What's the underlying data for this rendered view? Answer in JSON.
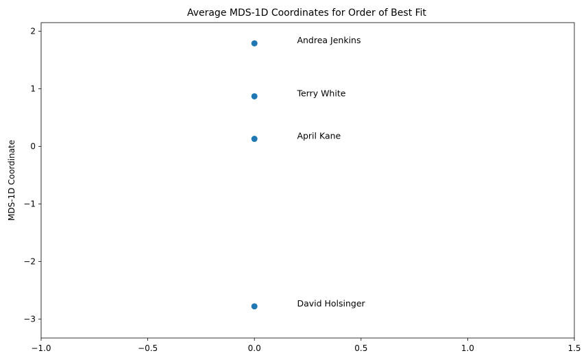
{
  "chart_data": {
    "type": "scatter",
    "title": "Average MDS-1D Coordinates for Order of Best Fit",
    "xlabel": "",
    "ylabel": "MDS-1D Coordinate",
    "xlim": [
      -1.0,
      1.5
    ],
    "ylim": [
      -3.33,
      2.15
    ],
    "xticks": [
      -1.0,
      -0.5,
      0.0,
      0.5,
      1.0,
      1.5
    ],
    "xtick_labels": [
      "−1.0",
      "−0.5",
      "0.0",
      "0.5",
      "1.0",
      "1.5"
    ],
    "yticks": [
      -3,
      -2,
      -1,
      0,
      1,
      2
    ],
    "ytick_labels": [
      "−3",
      "−2",
      "−1",
      "0",
      "1",
      "2"
    ],
    "grid": false,
    "marker_color": "#1f77b4",
    "points": [
      {
        "x": 0.0,
        "y": 1.79
      },
      {
        "x": 0.0,
        "y": 0.87
      },
      {
        "x": 0.0,
        "y": 0.13
      },
      {
        "x": 0.0,
        "y": -2.78
      }
    ],
    "annotations": [
      {
        "text": "Andrea Jenkins",
        "x": 0.2,
        "y": 1.79
      },
      {
        "text": "Terry White",
        "x": 0.2,
        "y": 0.87
      },
      {
        "text": "April Kane",
        "x": 0.2,
        "y": 0.13
      },
      {
        "text": "David Holsinger",
        "x": 0.2,
        "y": -2.78
      }
    ]
  }
}
